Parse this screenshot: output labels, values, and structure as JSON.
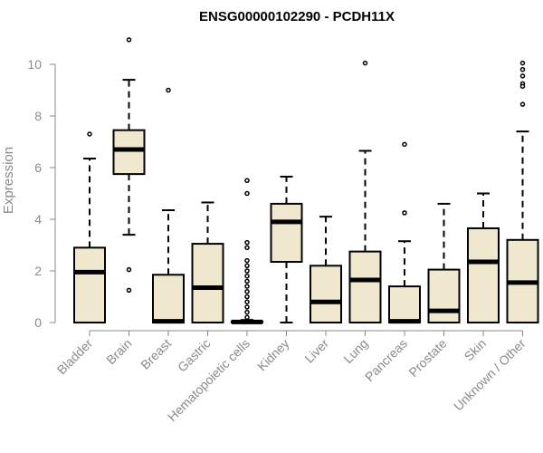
{
  "chart_data": {
    "type": "boxplot",
    "title": "ENSG00000102290 - PCDH11X",
    "ylabel": "Expression",
    "xlabel": "",
    "ylim": [
      0,
      10.5
    ],
    "yticks": [
      0,
      2,
      4,
      6,
      8,
      10
    ],
    "grid": false,
    "box_fill": "#efe8cf",
    "categories": [
      "Bladder",
      "Brain",
      "Breast",
      "Gastric",
      "Hematopoietic cells",
      "Kidney",
      "Liver",
      "Lung",
      "Pancreas",
      "Prostate",
      "Skin",
      "Unknown / Other"
    ],
    "boxes": [
      {
        "whisker_low": 0,
        "q1": 0,
        "median": 1.95,
        "q3": 2.9,
        "whisker_high": 6.35,
        "outliers": [
          7.3
        ]
      },
      {
        "whisker_low": 3.4,
        "q1": 5.75,
        "median": 6.7,
        "q3": 7.45,
        "whisker_high": 9.4,
        "outliers": [
          10.95,
          2.05,
          1.25
        ]
      },
      {
        "whisker_low": 0,
        "q1": 0,
        "median": 0.05,
        "q3": 1.85,
        "whisker_high": 4.35,
        "outliers": [
          9.0
        ]
      },
      {
        "whisker_low": 0,
        "q1": 0,
        "median": 1.35,
        "q3": 3.05,
        "whisker_high": 4.65,
        "outliers": []
      },
      {
        "whisker_low": 0,
        "q1": 0,
        "median": 0.02,
        "q3": 0.05,
        "whisker_high": 0.1,
        "outliers": [
          5.5,
          5.0,
          3.1,
          2.9,
          2.4,
          2.2,
          2.0,
          1.8,
          1.6,
          1.4,
          1.2,
          1.0,
          0.8,
          0.6,
          0.4,
          0.2
        ]
      },
      {
        "whisker_low": 0,
        "q1": 2.35,
        "median": 3.9,
        "q3": 4.6,
        "whisker_high": 5.65,
        "outliers": []
      },
      {
        "whisker_low": 0,
        "q1": 0,
        "median": 0.8,
        "q3": 2.2,
        "whisker_high": 4.1,
        "outliers": []
      },
      {
        "whisker_low": 0,
        "q1": 0,
        "median": 1.65,
        "q3": 2.75,
        "whisker_high": 6.65,
        "outliers": [
          10.05
        ]
      },
      {
        "whisker_low": 0,
        "q1": 0,
        "median": 0.05,
        "q3": 1.4,
        "whisker_high": 3.15,
        "outliers": [
          6.9,
          4.25
        ]
      },
      {
        "whisker_low": 0,
        "q1": 0,
        "median": 0.45,
        "q3": 2.05,
        "whisker_high": 4.6,
        "outliers": []
      },
      {
        "whisker_low": 0,
        "q1": 0,
        "median": 2.35,
        "q3": 3.65,
        "whisker_high": 5.0,
        "outliers": []
      },
      {
        "whisker_low": 0,
        "q1": 0,
        "median": 1.55,
        "q3": 3.2,
        "whisker_high": 7.4,
        "outliers": [
          10.05,
          9.8,
          9.55,
          9.25,
          9.15,
          8.45
        ]
      }
    ]
  }
}
